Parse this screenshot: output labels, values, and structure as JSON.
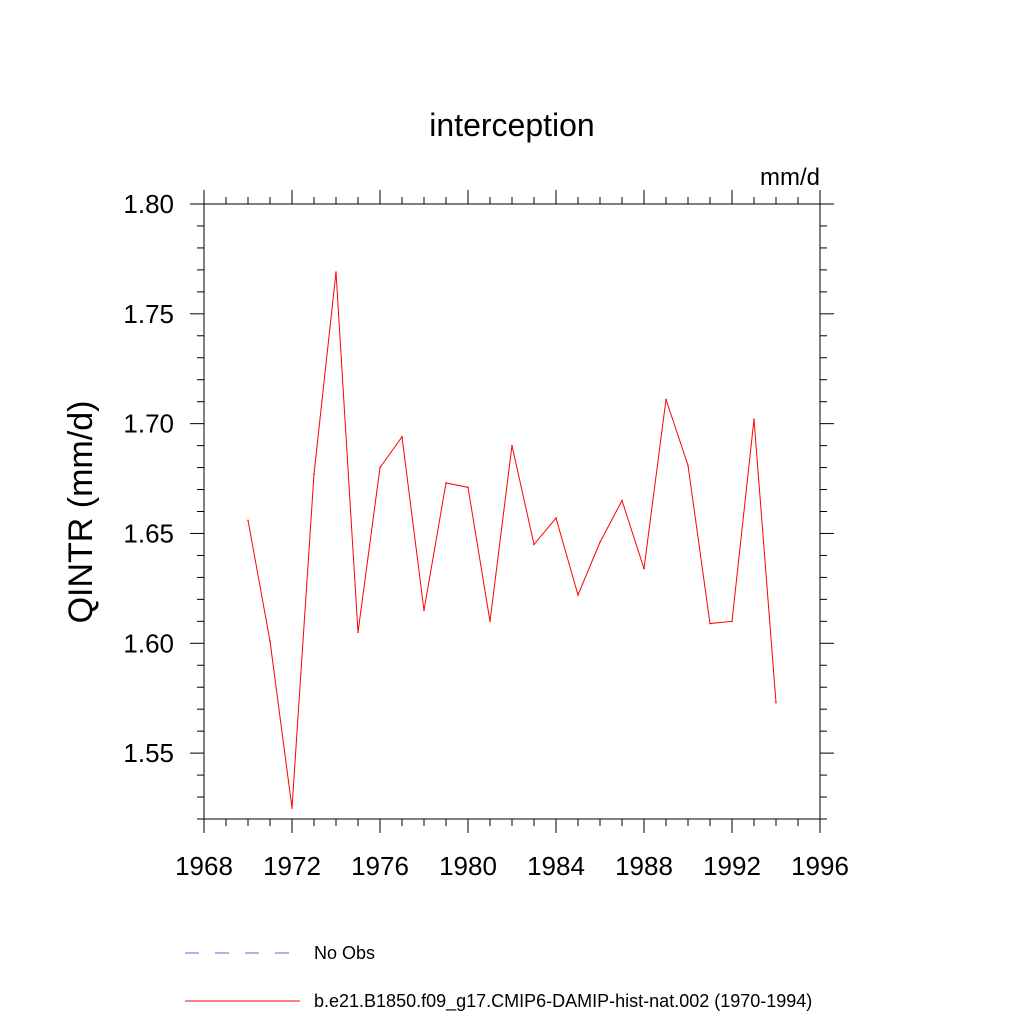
{
  "chart_data": {
    "type": "line",
    "title": "interception",
    "units_label": "mm/d",
    "ylabel": "QINTR  (mm/d)",
    "xlabel": "",
    "xlim": [
      1968,
      1996
    ],
    "ylim": [
      1.52,
      1.8
    ],
    "x_ticks": [
      1968,
      1972,
      1976,
      1980,
      1984,
      1988,
      1992,
      1996
    ],
    "x_tick_labels": [
      "1968",
      "1972",
      "1976",
      "1980",
      "1984",
      "1988",
      "1992",
      "1996"
    ],
    "y_ticks": [
      1.55,
      1.6,
      1.65,
      1.7,
      1.75,
      1.8
    ],
    "y_tick_labels": [
      "1.55",
      "1.60",
      "1.65",
      "1.70",
      "1.75",
      "1.80"
    ],
    "grid": false,
    "legend_placement": "bottom",
    "series": [
      {
        "name": "b.e21.B1850.f09_g17.CMIP6-DAMIP-hist-nat.002 (1970-1994)",
        "color": "#ff0000",
        "style": "solid",
        "x": [
          1970,
          1971,
          1972,
          1973,
          1974,
          1975,
          1976,
          1977,
          1978,
          1979,
          1980,
          1981,
          1982,
          1983,
          1984,
          1985,
          1986,
          1987,
          1988,
          1989,
          1990,
          1991,
          1992,
          1993,
          1994
        ],
        "y": [
          1.656,
          1.601,
          1.525,
          1.677,
          1.769,
          1.605,
          1.68,
          1.694,
          1.615,
          1.673,
          1.671,
          1.61,
          1.69,
          1.645,
          1.657,
          1.622,
          1.646,
          1.665,
          1.634,
          1.711,
          1.681,
          1.609,
          1.61,
          1.702,
          1.573
        ]
      }
    ],
    "legend": [
      {
        "label": "No Obs",
        "color": "#6666cc",
        "style": "dashed"
      },
      {
        "label": "b.e21.B1850.f09_g17.CMIP6-DAMIP-hist-nat.002 (1970-1994)",
        "color": "#ff0000",
        "style": "solid"
      }
    ]
  }
}
